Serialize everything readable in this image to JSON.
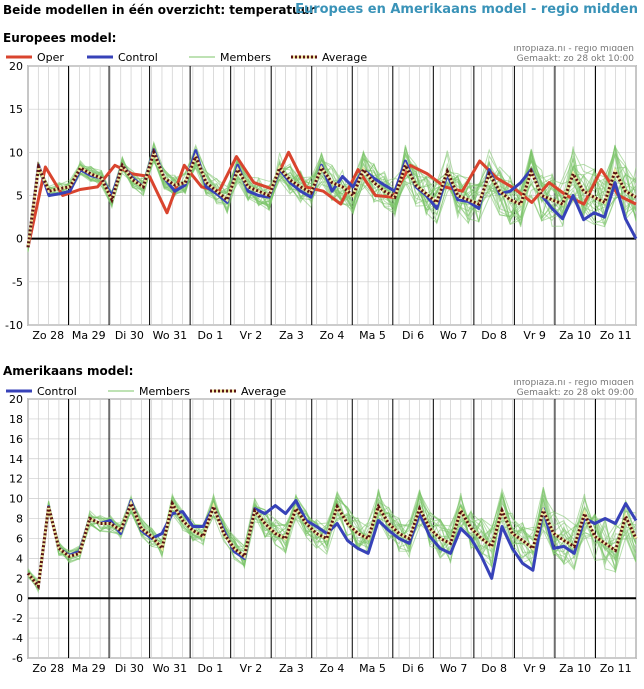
{
  "header": {
    "left_title": "Beide modellen in één overzicht: temperatuur",
    "right_title": "Europees en Amerikaans model - regio midden"
  },
  "colors": {
    "oper": "#d9442e",
    "control": "#3742b8",
    "members": "#7cc46a",
    "average_dark": "#5a1212",
    "average_light": "#f0e8a0",
    "zero_line": "#000000",
    "grid": "#cccccc",
    "day_line": "#000000"
  },
  "chart_data": [
    {
      "type": "line",
      "section_title": "Europees model:",
      "credit_line1": "Infoplaza.nl - regio midden",
      "credit_line2": "Gemaakt: zo 28 okt 10:00",
      "legend": [
        "Oper",
        "Control",
        "Members",
        "Average"
      ],
      "ylim": [
        -10,
        20
      ],
      "yticks": [
        20,
        15,
        10,
        5,
        0,
        -5,
        -10
      ],
      "x_day_labels": [
        "Zo 28",
        "Ma 29",
        "Di 30",
        "Wo 31",
        "Do 1",
        "Vr 2",
        "Za 3",
        "Zo 4",
        "Ma 5",
        "Di 6",
        "Wo 7",
        "Do 8",
        "Vr 9",
        "Za 10",
        "Zo 11"
      ],
      "x_steps": 60,
      "series": [
        {
          "name": "Oper",
          "values": [
            -1,
            8.3,
            5,
            5.7,
            6,
            8.5,
            7.5,
            7.2,
            3,
            8.5,
            6,
            5.5,
            9.5,
            6.5,
            5.8,
            10,
            6,
            5.5,
            4,
            8,
            5,
            4.8,
            8.5,
            7.5,
            6,
            5.5,
            9,
            7,
            5.8,
            4.2,
            6.5,
            5,
            4,
            8,
            5,
            4
          ]
        },
        {
          "name": "Control",
          "values": [
            -1,
            8.5,
            5,
            5.2,
            5.5,
            8,
            7.3,
            7,
            5,
            8.5,
            7,
            6,
            10.3,
            7,
            5.5,
            6.2,
            10.2,
            6,
            5.2,
            4.2,
            8.5,
            5.5,
            5,
            4.8,
            8,
            6.5,
            5.5,
            4.8,
            8.5,
            5.5,
            7.2,
            6,
            8,
            7,
            6.2,
            5.5,
            9,
            6,
            5,
            3.5,
            7.5,
            4.5,
            4.3,
            3.5,
            8,
            5.2,
            5.5,
            6.5,
            8,
            5,
            3.5,
            2.3,
            5,
            2.2,
            3,
            2.5,
            6.5,
            2.3,
            0
          ]
        },
        {
          "name": "Average",
          "values": [
            -1,
            8.3,
            5.5,
            5.8,
            6,
            8.2,
            7.5,
            7,
            4.5,
            8.5,
            6.8,
            6,
            10,
            7,
            6.2,
            6.5,
            9.5,
            6.5,
            5.5,
            4.5,
            8,
            6,
            5.5,
            5,
            8.2,
            6.8,
            6,
            5.3,
            8.2,
            6.5,
            6,
            5,
            8,
            6.5,
            5.5,
            4.8,
            8.5,
            6.2,
            5.2,
            4.2,
            7.8,
            5,
            4.5,
            4,
            7.5,
            5.5,
            4.5,
            4,
            7.8,
            5,
            4.5,
            4,
            7.5,
            5.5,
            4.8,
            4.2,
            7.8,
            5.5,
            4.8
          ]
        }
      ]
    },
    {
      "type": "line",
      "section_title": "Amerikaans model:",
      "credit_line1": "Infoplaza.nl - regio midden",
      "credit_line2": "Gemaakt: zo 28 okt 09:00",
      "legend": [
        "Control",
        "Members",
        "Average"
      ],
      "ylim": [
        -6,
        20
      ],
      "yticks": [
        20,
        18,
        16,
        14,
        12,
        10,
        8,
        6,
        4,
        2,
        0,
        -2,
        -4,
        -6
      ],
      "x_day_labels": [
        "Zo 28",
        "Ma 29",
        "Di 30",
        "Wo 31",
        "Do 1",
        "Vr 2",
        "Za 3",
        "Zo 4",
        "Ma 5",
        "Di 6",
        "Wo 7",
        "Do 8",
        "Vr 9",
        "Za 10",
        "Zo 11"
      ],
      "x_steps": 60,
      "series": [
        {
          "name": "Control",
          "values": [
            2.5,
            1.2,
            9.2,
            5,
            4.3,
            4.7,
            8,
            7.5,
            7.8,
            6.5,
            9.8,
            6.8,
            6,
            6.5,
            8.5,
            8.7,
            7.2,
            7.2,
            9.2,
            6.8,
            4.7,
            4,
            9,
            8.5,
            9.3,
            8.5,
            9.8,
            7.8,
            7.2,
            6.5,
            7.5,
            5.8,
            5,
            4.5,
            7.8,
            6.8,
            6,
            5.5,
            8.5,
            6.2,
            5,
            4.5,
            7,
            6,
            4.2,
            2,
            7.2,
            5,
            3.5,
            2.8,
            9,
            5,
            5.2,
            4.5,
            8,
            7.5,
            8,
            7.5,
            9.5,
            7.8
          ]
        },
        {
          "name": "Average",
          "values": [
            2.5,
            1.2,
            9.2,
            5,
            4.2,
            4.5,
            8,
            7.5,
            7.5,
            6.8,
            9.5,
            7,
            6.2,
            5,
            9.5,
            7.8,
            6.8,
            6.2,
            9.2,
            6.5,
            5,
            4.2,
            8.8,
            7.5,
            6.5,
            6,
            9,
            7.5,
            6.5,
            6,
            9.2,
            7.5,
            6.5,
            6,
            9.2,
            7.5,
            6.5,
            6,
            9,
            7,
            6,
            5.5,
            8.8,
            7,
            6,
            5.2,
            8.8,
            6.5,
            5.8,
            5,
            8.8,
            6.5,
            5.8,
            5.2,
            8.5,
            6.2,
            5.5,
            4.8,
            8.2,
            6
          ]
        }
      ]
    }
  ]
}
